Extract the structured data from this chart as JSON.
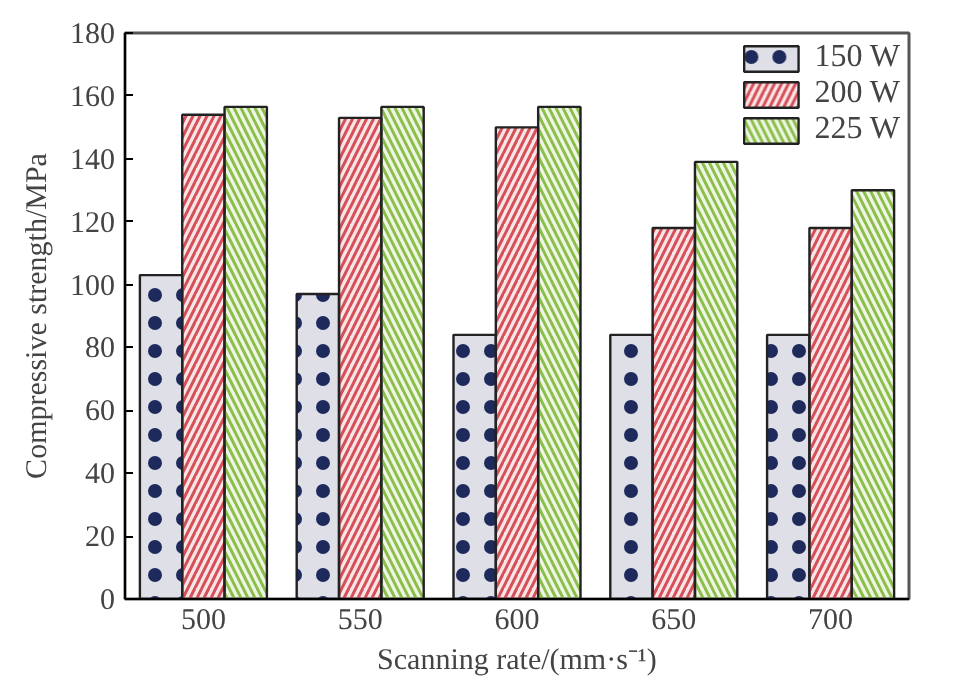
{
  "chart_data": {
    "type": "bar",
    "xlabel": "Scanning rate/(mm·s⁻¹)",
    "ylabel": "Compressive strength/MPa",
    "categories": [
      "500",
      "550",
      "600",
      "650",
      "700"
    ],
    "series": [
      {
        "name": "150 W",
        "color": "#1f2a5c",
        "values": [
          103,
          97,
          84,
          84,
          84
        ]
      },
      {
        "name": "200 W",
        "color": "#d6505a",
        "values": [
          154,
          153,
          150,
          118,
          118
        ]
      },
      {
        "name": "225 W",
        "color": "#8cbf4a",
        "values": [
          156.5,
          156.5,
          156.5,
          139,
          130
        ]
      }
    ],
    "ylim": [
      0,
      180
    ],
    "yticks": [
      0,
      20,
      40,
      60,
      80,
      100,
      120,
      140,
      160,
      180
    ],
    "grid": false,
    "legend": "top right"
  }
}
